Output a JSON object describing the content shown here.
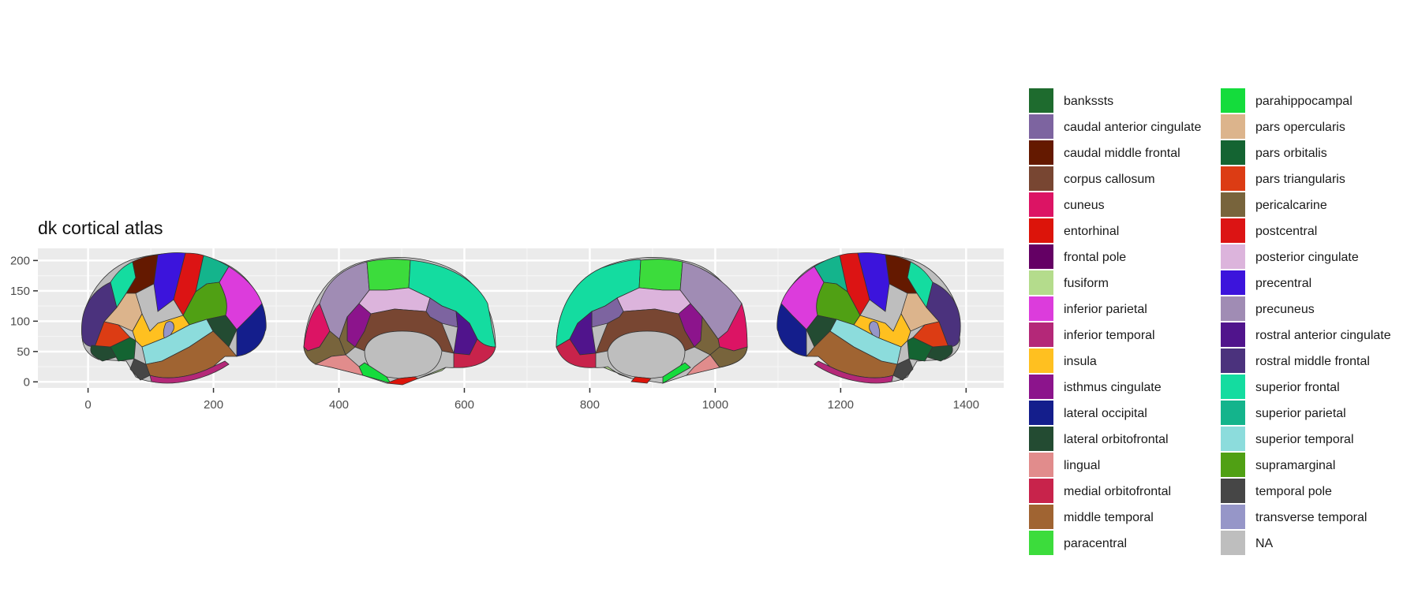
{
  "chart_data": {
    "type": "other",
    "title": "dk cortical atlas",
    "xlabel": "",
    "ylabel": "",
    "xlim": [
      -80,
      1460
    ],
    "ylim": [
      -10,
      220
    ],
    "x_ticks": [
      0,
      200,
      400,
      600,
      800,
      1000,
      1200,
      1400
    ],
    "y_ticks": [
      0,
      50,
      100,
      150,
      200
    ],
    "grid": true,
    "panel_background": "#ebebeb",
    "grid_color": "#ffffff",
    "legend_position": "right",
    "views": [
      "lateral left",
      "medial left",
      "medial right",
      "lateral right"
    ],
    "legend": [
      {
        "label": "bankssts",
        "color": "#1e6b2e"
      },
      {
        "label": "caudal anterior cingulate",
        "color": "#7d64a0"
      },
      {
        "label": "caudal middle frontal",
        "color": "#641900"
      },
      {
        "label": "corpus callosum",
        "color": "#784632"
      },
      {
        "label": "cuneus",
        "color": "#dc1464"
      },
      {
        "label": "entorhinal",
        "color": "#dc140a"
      },
      {
        "label": "frontal pole",
        "color": "#640064"
      },
      {
        "label": "fusiform",
        "color": "#b4dc8c"
      },
      {
        "label": "inferior parietal",
        "color": "#dc3cdc"
      },
      {
        "label": "inferior temporal",
        "color": "#b42878"
      },
      {
        "label": "insula",
        "color": "#ffc020"
      },
      {
        "label": "isthmus cingulate",
        "color": "#8c148c"
      },
      {
        "label": "lateral occipital",
        "color": "#141e8c"
      },
      {
        "label": "lateral orbitofrontal",
        "color": "#234b32"
      },
      {
        "label": "lingual",
        "color": "#e18c8c"
      },
      {
        "label": "medial orbitofrontal",
        "color": "#c8234b"
      },
      {
        "label": "middle temporal",
        "color": "#a06432"
      },
      {
        "label": "paracentral",
        "color": "#3cdc3c"
      },
      {
        "label": "parahippocampal",
        "color": "#14dc3c"
      },
      {
        "label": "pars opercularis",
        "color": "#dcb48c"
      },
      {
        "label": "pars orbitalis",
        "color": "#146432"
      },
      {
        "label": "pars triangularis",
        "color": "#dc3c14"
      },
      {
        "label": "pericalcarine",
        "color": "#78643c"
      },
      {
        "label": "postcentral",
        "color": "#dc1414"
      },
      {
        "label": "posterior cingulate",
        "color": "#dcb4dc"
      },
      {
        "label": "precentral",
        "color": "#3c14dc"
      },
      {
        "label": "precuneus",
        "color": "#a08cb4"
      },
      {
        "label": "rostral anterior cingulate",
        "color": "#50148c"
      },
      {
        "label": "rostral middle frontal",
        "color": "#4b327d"
      },
      {
        "label": "superior frontal",
        "color": "#14dca0"
      },
      {
        "label": "superior parietal",
        "color": "#14b48c"
      },
      {
        "label": "superior temporal",
        "color": "#8cdcdc"
      },
      {
        "label": "supramarginal",
        "color": "#50a014"
      },
      {
        "label": "temporal pole",
        "color": "#464646"
      },
      {
        "label": "transverse temporal",
        "color": "#9696c8"
      },
      {
        "label": "NA",
        "color": "#bebebe"
      }
    ]
  }
}
